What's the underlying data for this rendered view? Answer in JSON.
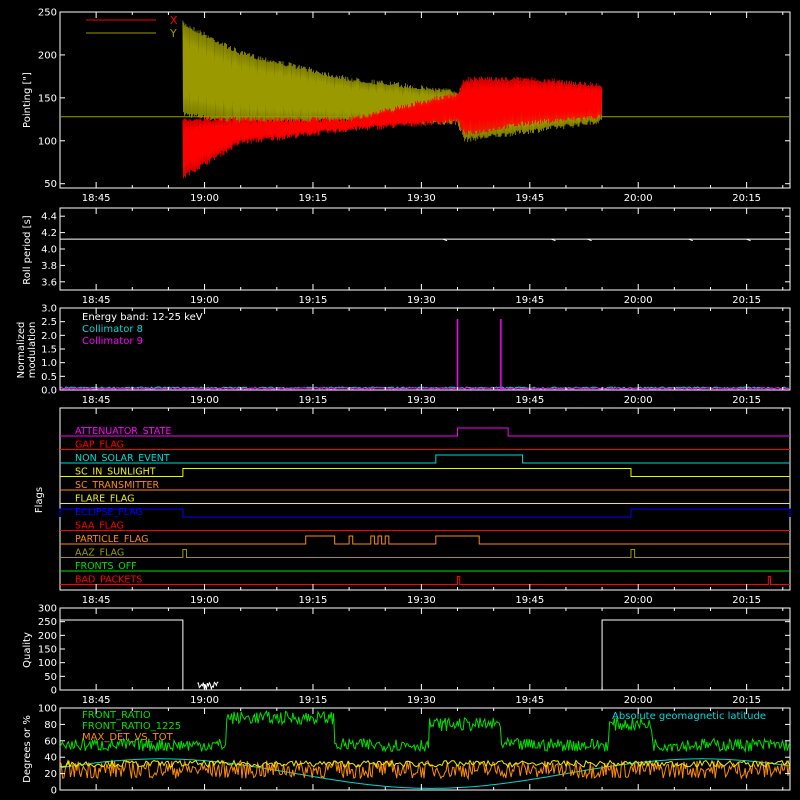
{
  "time_ticks": [
    "18:45",
    "19:00",
    "19:15",
    "19:30",
    "19:45",
    "20:00",
    "20:15"
  ],
  "colors": {
    "background": "#000000",
    "axis": "#ffffff",
    "red": "#ff0000",
    "olive": "#9a9a00",
    "white": "#ffffff",
    "cyan": "#00d8d8",
    "magenta": "#ff00ff",
    "green": "#00e000",
    "yellow": "#f0f000",
    "orange": "#ff8c00",
    "blue": "#0000ff",
    "tan": "#c87832"
  },
  "chart_data": [
    {
      "type": "line",
      "panel": "pointing",
      "ylabel": "Pointing [\"]",
      "ylim": [
        45,
        250
      ],
      "yticks": [
        "50",
        "100",
        "150",
        "200",
        "250"
      ],
      "legend_placement": "top-left",
      "series": [
        {
          "name": "X",
          "color": "#ff0000",
          "envelope_x": [
            "18:57",
            "19:05",
            "19:20",
            "19:35",
            "19:36",
            "19:45",
            "19:55"
          ],
          "envelope_low": [
            55,
            95,
            110,
            120,
            105,
            118,
            125
          ],
          "envelope_high": [
            128,
            128,
            128,
            158,
            175,
            175,
            168
          ]
        },
        {
          "name": "Y",
          "color": "#9a9a00",
          "envelope_x": [
            "18:57",
            "19:05",
            "19:20",
            "19:35",
            "19:36",
            "19:45",
            "19:55"
          ],
          "envelope_low": [
            128,
            118,
            120,
            118,
            98,
            108,
            120
          ],
          "envelope_high": [
            240,
            205,
            175,
            160,
            165,
            162,
            160
          ]
        }
      ],
      "baseline": 128
    },
    {
      "type": "line",
      "panel": "roll-period",
      "ylabel": "Roll period [s]",
      "ylim": [
        3.5,
        4.5
      ],
      "yticks": [
        "3.6",
        "3.8",
        "4.0",
        "4.2",
        "4.4"
      ],
      "series": [
        {
          "name": "",
          "color": "#ffffff",
          "value": 4.12
        }
      ]
    },
    {
      "type": "line",
      "panel": "modulation",
      "ylabel": [
        "Normalized",
        "modulation"
      ],
      "ylim": [
        0,
        3.0
      ],
      "yticks": [
        "0.0",
        "0.5",
        "1.0",
        "1.5",
        "2.0",
        "2.5",
        "3.0"
      ],
      "legend_title": "Energy band: 12-25 keV",
      "series": [
        {
          "name": "Collimator 8",
          "color": "#00d8d8",
          "level": 0.05
        },
        {
          "name": "Collimator 9",
          "color": "#ff00ff",
          "level": 0.03,
          "spikes_x": [
            "19:35",
            "19:41"
          ],
          "spike_y": 2.6
        }
      ]
    },
    {
      "type": "line",
      "panel": "flags",
      "ylabel": "Flags",
      "flags": [
        {
          "name": "ATTENUATOR_STATE",
          "color": "#ff00ff",
          "on": [
            [
              "19:35",
              "19:42"
            ]
          ]
        },
        {
          "name": "GAP_FLAG",
          "color": "#ff0000",
          "on": []
        },
        {
          "name": "NON_SOLAR_EVENT",
          "color": "#00d8d8",
          "on": [
            [
              "19:32",
              "19:44"
            ]
          ]
        },
        {
          "name": "SC_IN_SUNLIGHT",
          "color": "#f0f000",
          "on": [
            [
              "18:57",
              "19:59"
            ]
          ]
        },
        {
          "name": "SC_TRANSMITTER",
          "color": "#ff8c00",
          "on": []
        },
        {
          "name": "FLARE_FLAG",
          "color": "#f0f000",
          "on": []
        },
        {
          "name": "ECLIPSE_FLAG",
          "color": "#0000ff",
          "on": [
            [
              "18:40",
              "18:57"
            ],
            [
              "19:59",
              "20:21"
            ]
          ]
        },
        {
          "name": "SAA_FLAG",
          "color": "#ff0000",
          "on": []
        },
        {
          "name": "PARTICLE_FLAG",
          "color": "#ff8c00",
          "on": [
            [
              "19:14",
              "19:18"
            ],
            [
              "19:20",
              "19:20.5"
            ],
            [
              "19:23",
              "19:23.5"
            ],
            [
              "19:24",
              "19:24.5"
            ],
            [
              "19:25",
              "19:25.5"
            ],
            [
              "19:32",
              "19:38"
            ]
          ]
        },
        {
          "name": "AAZ_FLAG",
          "color": "#9a9a00",
          "on": [
            [
              "18:57",
              "18:57.5"
            ],
            [
              "19:59",
              "19:59.5"
            ]
          ]
        },
        {
          "name": "FRONTS_OFF",
          "color": "#00e000",
          "on": []
        },
        {
          "name": "BAD_PACKETS",
          "color": "#ff0000",
          "on": [
            [
              "19:35",
              "19:35.3"
            ],
            [
              "20:18",
              "20:18.3"
            ]
          ]
        }
      ]
    },
    {
      "type": "line",
      "panel": "quality",
      "ylabel": "Quality",
      "ylim": [
        0,
        300
      ],
      "yticks": [
        "0",
        "50",
        "100",
        "150",
        "200",
        "250",
        "300"
      ],
      "series": [
        {
          "name": "",
          "color": "#ffffff",
          "segments": [
            {
              "x": [
                "18:40",
                "18:57"
              ],
              "y": 256
            },
            {
              "x": [
                "18:57",
                "19:55"
              ],
              "y": 0
            },
            {
              "x": [
                "19:55",
                "20:21"
              ],
              "y": 256
            }
          ]
        }
      ]
    },
    {
      "type": "line",
      "panel": "degrees",
      "ylabel": "Degrees or %",
      "ylim": [
        0,
        100
      ],
      "yticks": [
        "0",
        "20",
        "40",
        "60",
        "80",
        "100"
      ],
      "series": [
        {
          "name": "FRONT_RATIO",
          "color": "#00e000"
        },
        {
          "name": "FRONT_RATIO_1225",
          "color": "#00e000"
        },
        {
          "name": "MAX_DET_VS_TOT",
          "color": "#ff8c00"
        },
        {
          "name": "",
          "color": "#f0f000"
        },
        {
          "name": "Absolute geomagnetic latitude",
          "color": "#00d8d8"
        }
      ]
    }
  ]
}
